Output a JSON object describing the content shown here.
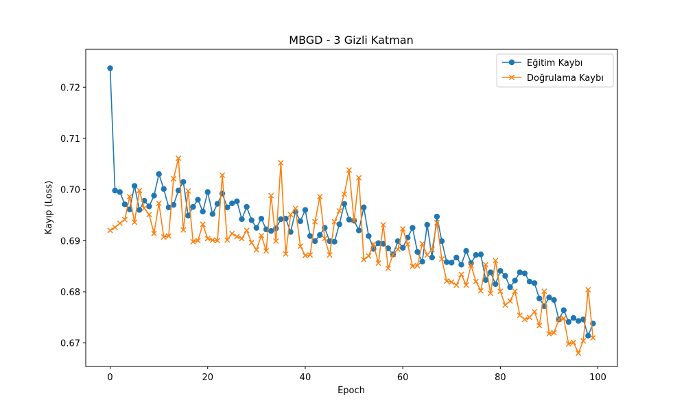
{
  "chart_data": {
    "type": "line",
    "title": "MBGD - 3 Gizli Katman",
    "xlabel": "Epoch",
    "ylabel": "Kayıp (Loss)",
    "xlim": [
      -5,
      104
    ],
    "ylim": [
      0.6654,
      0.7274
    ],
    "xticks": [
      0,
      20,
      40,
      60,
      80,
      100
    ],
    "yticks": [
      0.67,
      0.68,
      0.69,
      0.7,
      0.71,
      0.72
    ],
    "ytick_labels": [
      "0.67",
      "0.68",
      "0.69",
      "0.70",
      "0.71",
      "0.72"
    ],
    "grid": false,
    "legend_position": "top-right",
    "series": [
      {
        "name": "Eğitim Kaybı",
        "color": "#1f77b4",
        "marker": "circle",
        "x_start": 0,
        "values": [
          0.7237,
          0.6998,
          0.6995,
          0.6971,
          0.6961,
          0.7007,
          0.696,
          0.6978,
          0.6967,
          0.6988,
          0.703,
          0.7001,
          0.6965,
          0.697,
          0.6998,
          0.7015,
          0.6949,
          0.6966,
          0.698,
          0.6957,
          0.6995,
          0.6952,
          0.6972,
          0.6992,
          0.6965,
          0.6973,
          0.6977,
          0.6942,
          0.6966,
          0.694,
          0.6925,
          0.6943,
          0.6922,
          0.6919,
          0.6924,
          0.6942,
          0.6943,
          0.6917,
          0.6957,
          0.6938,
          0.696,
          0.6909,
          0.6899,
          0.6911,
          0.6925,
          0.6899,
          0.6898,
          0.6932,
          0.6972,
          0.6941,
          0.6939,
          0.692,
          0.6965,
          0.6909,
          0.6884,
          0.6895,
          0.6894,
          0.6885,
          0.6873,
          0.6899,
          0.6886,
          0.6906,
          0.6925,
          0.6878,
          0.6859,
          0.6931,
          0.6867,
          0.6947,
          0.6899,
          0.6858,
          0.6857,
          0.6867,
          0.6853,
          0.688,
          0.6856,
          0.6872,
          0.6873,
          0.6823,
          0.6838,
          0.6815,
          0.6841,
          0.6831,
          0.6809,
          0.6822,
          0.6838,
          0.6836,
          0.682,
          0.6817,
          0.6787,
          0.6772,
          0.6789,
          0.6784,
          0.6746,
          0.6764,
          0.6741,
          0.6749,
          0.6743,
          0.6746,
          0.6714,
          0.6738
        ]
      },
      {
        "name": "Doğrulama Kaybı",
        "color": "#ff7f0e",
        "marker": "x",
        "x_start": 0,
        "values": [
          0.692,
          0.6926,
          0.6934,
          0.6941,
          0.6986,
          0.6936,
          0.6998,
          0.6963,
          0.6951,
          0.6914,
          0.6973,
          0.6907,
          0.6909,
          0.7021,
          0.7061,
          0.6921,
          0.6997,
          0.6898,
          0.69,
          0.6932,
          0.6904,
          0.6901,
          0.69,
          0.7028,
          0.6901,
          0.6914,
          0.6908,
          0.6904,
          0.692,
          0.6896,
          0.6882,
          0.691,
          0.688,
          0.6988,
          0.6899,
          0.7052,
          0.6874,
          0.6951,
          0.6963,
          0.6889,
          0.6871,
          0.6872,
          0.6937,
          0.6986,
          0.6904,
          0.6872,
          0.6937,
          0.6958,
          0.6991,
          0.7038,
          0.6939,
          0.7023,
          0.6863,
          0.687,
          0.6893,
          0.6856,
          0.6931,
          0.6846,
          0.6873,
          0.6883,
          0.6923,
          0.6893,
          0.685,
          0.6851,
          0.6894,
          0.6872,
          0.6883,
          0.6935,
          0.6864,
          0.6821,
          0.6819,
          0.6813,
          0.6834,
          0.6813,
          0.6852,
          0.682,
          0.6802,
          0.6853,
          0.6797,
          0.6861,
          0.6801,
          0.6774,
          0.6782,
          0.6801,
          0.6754,
          0.6746,
          0.675,
          0.6761,
          0.6734,
          0.6801,
          0.6718,
          0.672,
          0.6746,
          0.6748,
          0.6698,
          0.6701,
          0.668,
          0.6704,
          0.6804,
          0.671
        ]
      }
    ]
  }
}
